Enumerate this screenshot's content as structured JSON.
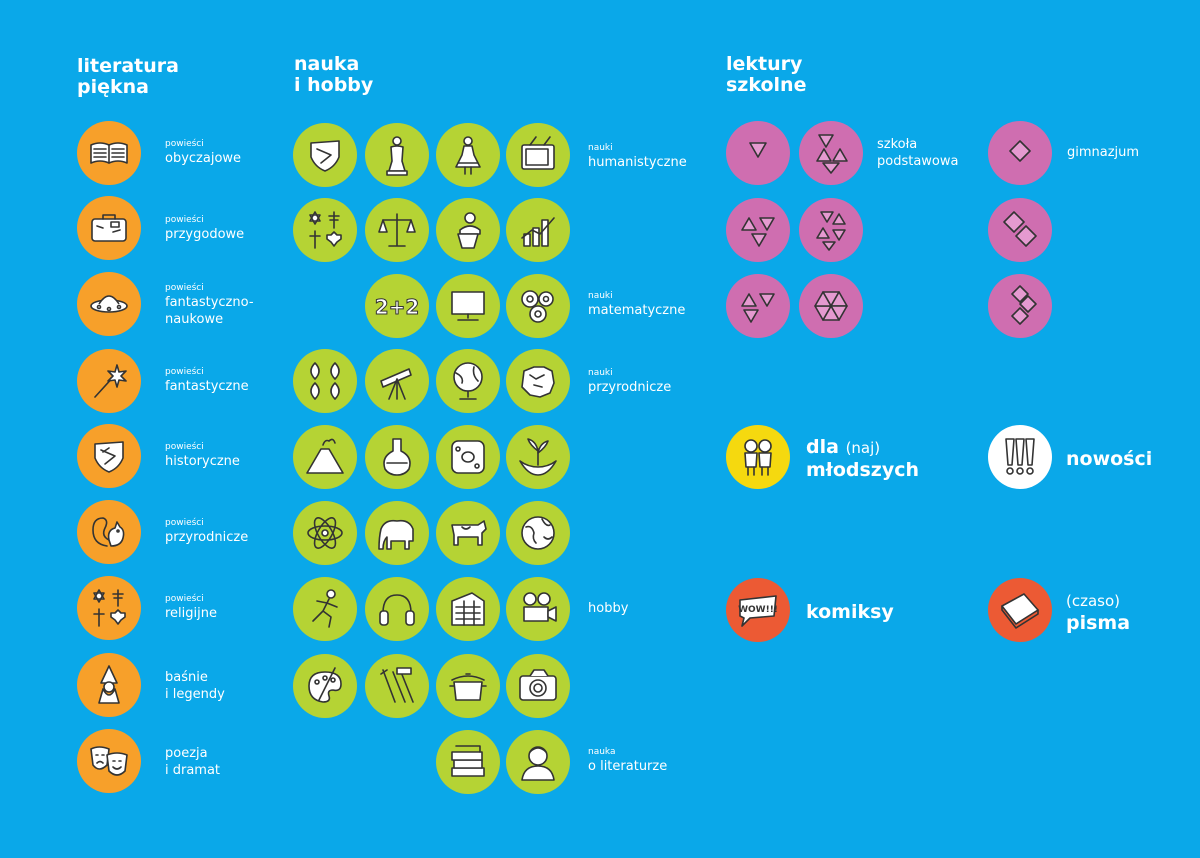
{
  "col1": {
    "heading": "literatura\npiękna",
    "items": [
      {
        "small": "powieści",
        "main": "obyczajowe",
        "icon": "book-icon"
      },
      {
        "small": "powieści",
        "main": "przygodowe",
        "icon": "suitcase-icon"
      },
      {
        "small": "powieści",
        "main": "fantastyczno-\nnaukowe",
        "icon": "ufo-icon"
      },
      {
        "small": "powieści",
        "main": "fantastyczne",
        "icon": "magic-wand-icon"
      },
      {
        "small": "powieści",
        "main": "historyczne",
        "icon": "shield-icon"
      },
      {
        "small": "powieści",
        "main": "przyrodnicze",
        "icon": "squirrel-icon"
      },
      {
        "small": "powieści",
        "main": "religijne",
        "icon": "religious-symbols-icon"
      },
      {
        "small": "",
        "main": "baśnie\ni legendy",
        "icon": "gnome-icon"
      },
      {
        "small": "",
        "main": "poezja\ni dramat",
        "icon": "theater-masks-icon"
      }
    ]
  },
  "col2": {
    "heading": "nauka\ni hobby",
    "labels": [
      {
        "small": "nauki",
        "main": "humanistyczne"
      },
      {
        "small": "nauki",
        "main": "matematyczne"
      },
      {
        "small": "nauki",
        "main": "przyrodnicze"
      },
      {
        "small": "",
        "main": "hobby"
      },
      {
        "small": "nauka",
        "main": "o literaturze"
      }
    ],
    "icons": [
      "shield-icon",
      "statue-icon",
      "folk-doll-icon",
      "tv-icon",
      "religious-symbols-icon",
      "scales-icon",
      "speaker-podium-icon",
      "growth-chart-icon",
      "two-plus-two-icon",
      "computer-icon",
      "gears-icon",
      "leaves-icon",
      "telescope-icon",
      "globe-icon",
      "poland-map-icon",
      "volcano-icon",
      "flask-icon",
      "cell-icon",
      "hands-plant-icon",
      "atom-icon",
      "elephant-icon",
      "cow-icon",
      "earth-icon",
      "runner-icon",
      "headphones-icon",
      "building-icon",
      "film-camera-icon",
      "palette-icon",
      "tools-icon",
      "pot-icon",
      "photo-camera-icon",
      "books-icon",
      "portrait-icon"
    ]
  },
  "col3": {
    "heading": "lektury\nszkolne",
    "szkola": "szkoła\npodstawowa",
    "gimnazjum": "gimnazjum",
    "dla": "dla",
    "naj": "(naj)",
    "mlodszych": "młodszych",
    "nowosci": "nowości",
    "komiksy": "komiksy",
    "czaso": "(czaso)",
    "pisma": "pisma",
    "comic_text": "WOW!!!"
  },
  "colors": {
    "background": "#0aa8e9",
    "orange": "#f7a02a",
    "green": "#b5d334",
    "pink": "#cf6eb0",
    "yellow": "#f5d90f",
    "red": "#ec5a34"
  }
}
